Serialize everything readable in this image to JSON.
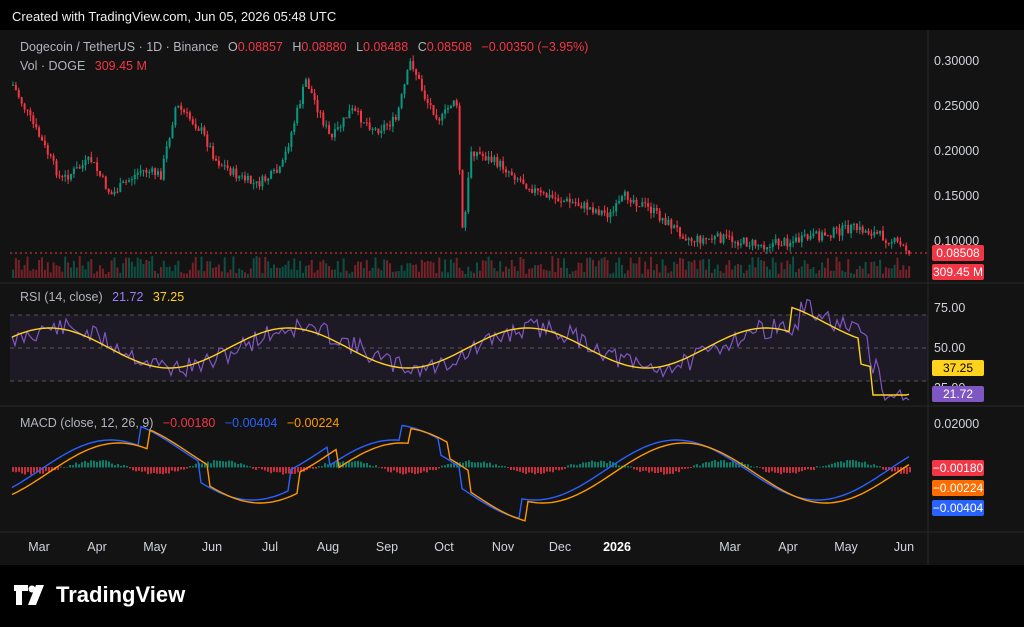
{
  "header": {
    "created_text": "Created with TradingView.com, Jun 05, 2026 05:48 UTC"
  },
  "symbol": {
    "name": "Dogecoin / TetherUS · 1D · Binance",
    "o_label": "O",
    "o": "0.08857",
    "h_label": "H",
    "h": "0.08880",
    "l_label": "L",
    "l": "0.08488",
    "c_label": "C",
    "c": "0.08508",
    "change": "−0.00350 (−3.95%)",
    "vol_label": "Vol · DOGE",
    "vol": "309.45 M"
  },
  "price_axis": [
    "0.30000",
    "0.25000",
    "0.20000",
    "0.15000",
    "0.10000"
  ],
  "price_tags": {
    "last": "0.08508",
    "volume": "309.45 M"
  },
  "rsi": {
    "label": "RSI (14, close)",
    "value": "21.72",
    "ma": "37.25",
    "axis": [
      "75.00",
      "50.00",
      "25.00"
    ]
  },
  "macd": {
    "label": "MACD (close, 12, 26, 9)",
    "hist": "−0.00180",
    "macd": "−0.00404",
    "signal": "−0.00224",
    "axis": [
      "0.02000"
    ]
  },
  "time_axis": [
    "Mar",
    "Apr",
    "May",
    "Jun",
    "Jul",
    "Aug",
    "Sep",
    "Oct",
    "Nov",
    "Dec",
    "2026",
    "Mar",
    "Apr",
    "May",
    "Jun"
  ],
  "brand": {
    "name": "TradingView",
    "icon": "tradingview-logo-icon"
  },
  "colors": {
    "up": "#089981",
    "down": "#f23645",
    "rsi": "#7e57c2",
    "rsi_ma": "#ffd21e",
    "macd": "#2962ff",
    "signal": "#ff9800"
  }
}
